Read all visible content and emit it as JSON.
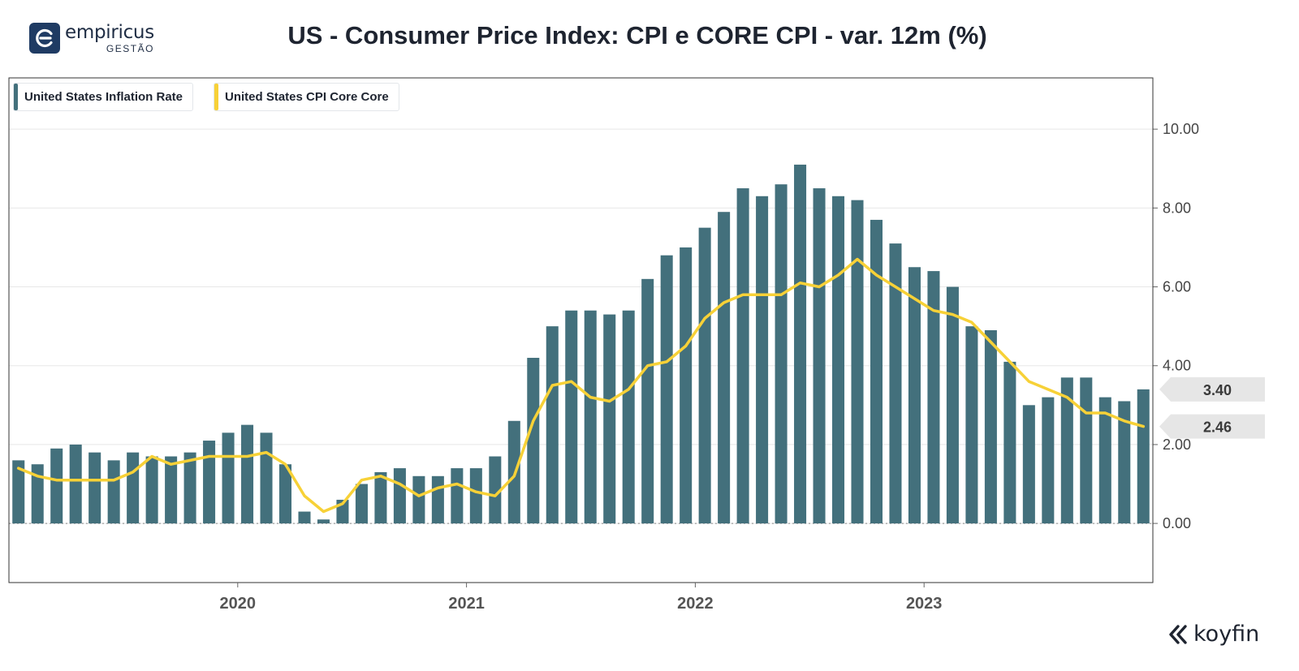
{
  "brand": {
    "name": "empiricus",
    "sub": "GESTÃO"
  },
  "title": "US - Consumer Price Index: CPI e CORE CPI - var. 12m (%)",
  "footer_brand": "koyfin",
  "colors": {
    "bar": "#43707c",
    "line": "#f7d137",
    "axis": "#444444",
    "grid": "#e8e8e8"
  },
  "chart_data": {
    "type": "bar",
    "title": "US - Consumer Price Index: CPI e CORE CPI - var. 12m (%)",
    "ylim": [
      -1.5,
      11.3
    ],
    "y_ticks": [
      {
        "value": 0,
        "label": "0.00"
      },
      {
        "value": 2,
        "label": "2.00"
      },
      {
        "value": 4,
        "label": "4.00"
      },
      {
        "value": 6,
        "label": "6.00"
      },
      {
        "value": 8,
        "label": "8.00"
      },
      {
        "value": 10,
        "label": "10.00"
      }
    ],
    "x_ticks": [
      {
        "index": 11.5,
        "label": "2020"
      },
      {
        "index": 23.5,
        "label": "2021"
      },
      {
        "index": 35.5,
        "label": "2022"
      },
      {
        "index": 47.5,
        "label": "2023"
      }
    ],
    "categories": [
      "Jan 2019",
      "Feb 2019",
      "Mar 2019",
      "Apr 2019",
      "May 2019",
      "Jun 2019",
      "Jul 2019",
      "Aug 2019",
      "Sep 2019",
      "Oct 2019",
      "Nov 2019",
      "Dec 2019",
      "Jan 2020",
      "Feb 2020",
      "Mar 2020",
      "Apr 2020",
      "May 2020",
      "Jun 2020",
      "Jul 2020",
      "Aug 2020",
      "Sep 2020",
      "Oct 2020",
      "Nov 2020",
      "Dec 2020",
      "Jan 2021",
      "Feb 2021",
      "Mar 2021",
      "Apr 2021",
      "May 2021",
      "Jun 2021",
      "Jul 2021",
      "Aug 2021",
      "Sep 2021",
      "Oct 2021",
      "Nov 2021",
      "Dec 2021",
      "Jan 2022",
      "Feb 2022",
      "Mar 2022",
      "Apr 2022",
      "May 2022",
      "Jun 2022",
      "Jul 2022",
      "Aug 2022",
      "Sep 2022",
      "Oct 2022",
      "Nov 2022",
      "Dec 2022",
      "Jan 2023",
      "Feb 2023",
      "Mar 2023",
      "Apr 2023",
      "May 2023",
      "Jun 2023",
      "Jul 2023",
      "Aug 2023",
      "Sep 2023",
      "Oct 2023",
      "Nov 2023",
      "Dec 2023"
    ],
    "series": [
      {
        "name": "United States Inflation Rate",
        "kind": "bar",
        "color": "#43707c",
        "last_label": "3.40",
        "values": [
          1.6,
          1.5,
          1.9,
          2.0,
          1.8,
          1.6,
          1.8,
          1.7,
          1.7,
          1.8,
          2.1,
          2.3,
          2.5,
          2.3,
          1.5,
          0.3,
          0.1,
          0.6,
          1.0,
          1.3,
          1.4,
          1.2,
          1.2,
          1.4,
          1.4,
          1.7,
          2.6,
          4.2,
          5.0,
          5.4,
          5.4,
          5.3,
          5.4,
          6.2,
          6.8,
          7.0,
          7.5,
          7.9,
          8.5,
          8.3,
          8.6,
          9.1,
          8.5,
          8.3,
          8.2,
          7.7,
          7.1,
          6.5,
          6.4,
          6.0,
          5.0,
          4.9,
          4.1,
          3.0,
          3.2,
          3.7,
          3.7,
          3.2,
          3.1,
          3.4
        ]
      },
      {
        "name": "United States CPI Core Core",
        "kind": "line",
        "color": "#f7d137",
        "last_label": "2.46",
        "values": [
          1.4,
          1.2,
          1.1,
          1.1,
          1.1,
          1.1,
          1.3,
          1.7,
          1.5,
          1.6,
          1.7,
          1.7,
          1.7,
          1.8,
          1.5,
          0.7,
          0.3,
          0.5,
          1.1,
          1.2,
          1.0,
          0.7,
          0.9,
          1.0,
          0.8,
          0.7,
          1.2,
          2.6,
          3.5,
          3.6,
          3.2,
          3.1,
          3.4,
          4.0,
          4.1,
          4.5,
          5.2,
          5.6,
          5.8,
          5.8,
          5.8,
          6.1,
          6.0,
          6.3,
          6.7,
          6.3,
          6.0,
          5.7,
          5.4,
          5.3,
          5.1,
          4.6,
          4.1,
          3.6,
          3.4,
          3.2,
          2.8,
          2.8,
          2.6,
          2.46
        ]
      }
    ]
  }
}
